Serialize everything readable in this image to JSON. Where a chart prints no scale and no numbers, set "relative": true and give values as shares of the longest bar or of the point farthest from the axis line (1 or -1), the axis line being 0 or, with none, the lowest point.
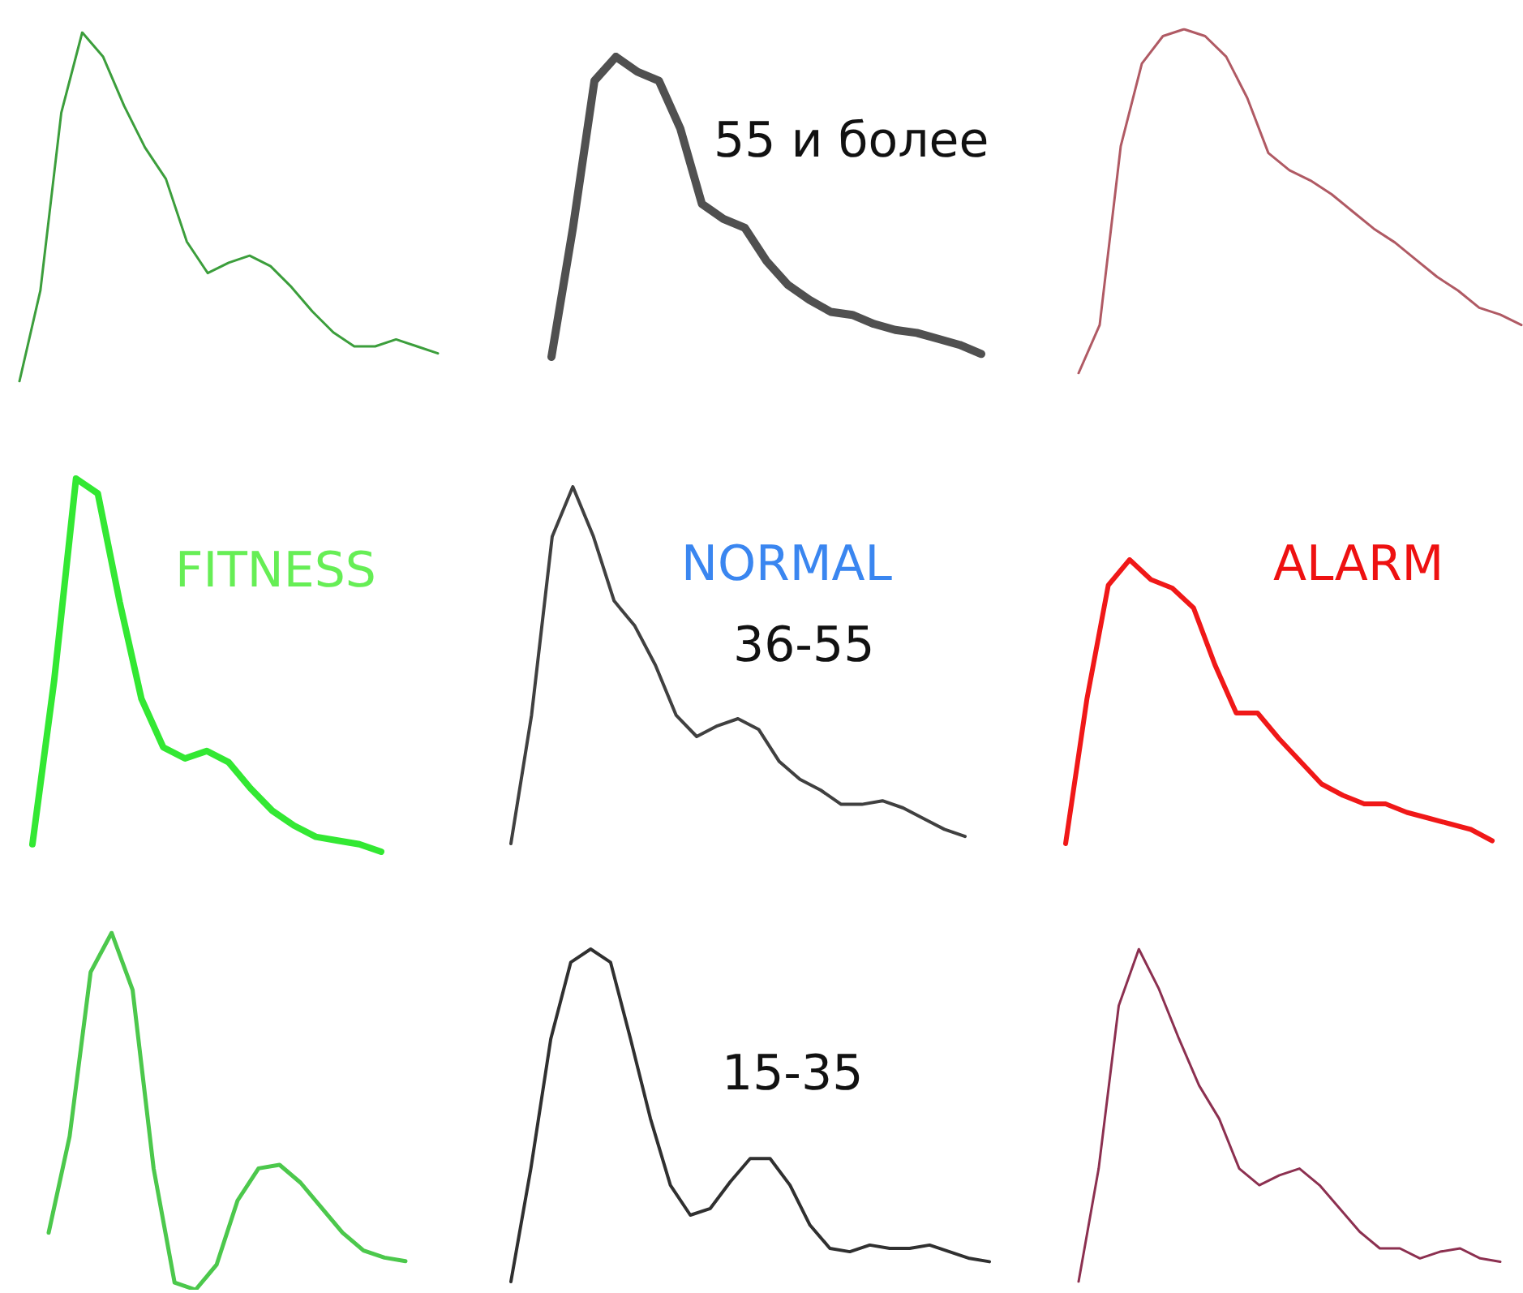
{
  "chart_data": [
    {
      "type": "line",
      "relative": true,
      "categories": [
        null,
        null,
        null,
        null,
        null,
        null,
        null,
        null,
        null,
        null,
        null,
        null,
        null,
        null,
        null,
        null,
        null,
        null,
        null,
        null,
        null
      ],
      "series": [
        {
          "color": "#3c9e3c",
          "values": [
            0,
            0.26,
            0.77,
            1,
            0.93,
            0.79,
            0.67,
            0.58,
            0.4,
            0.31,
            0.34,
            0.36,
            0.33,
            0.27,
            0.2,
            0.14,
            0.1,
            0.1,
            0.12,
            0.1,
            0.08
          ]
        }
      ]
    },
    {
      "type": "line",
      "relative": true,
      "annotations": [
        "55 и более"
      ],
      "categories": [
        null,
        null,
        null,
        null,
        null,
        null,
        null,
        null,
        null,
        null,
        null,
        null,
        null,
        null,
        null,
        null,
        null,
        null,
        null,
        null,
        null
      ],
      "series": [
        {
          "color": "#505050",
          "values": [
            0,
            0.43,
            0.92,
            1,
            0.95,
            0.92,
            0.76,
            0.51,
            0.46,
            0.43,
            0.32,
            0.24,
            0.19,
            0.15,
            0.14,
            0.11,
            0.09,
            0.08,
            0.06,
            0.04,
            0.01
          ]
        }
      ]
    },
    {
      "type": "line",
      "relative": true,
      "categories": [
        null,
        null,
        null,
        null,
        null,
        null,
        null,
        null,
        null,
        null,
        null,
        null,
        null,
        null,
        null,
        null,
        null,
        null,
        null,
        null,
        null,
        null
      ],
      "series": [
        {
          "color": "#b05a64",
          "values": [
            0,
            0.14,
            0.66,
            0.9,
            0.98,
            1,
            0.98,
            0.92,
            0.8,
            0.64,
            0.59,
            0.56,
            0.52,
            0.47,
            0.42,
            0.38,
            0.33,
            0.28,
            0.24,
            0.19,
            0.17,
            0.14
          ]
        }
      ]
    },
    {
      "type": "line",
      "relative": true,
      "annotations": [
        "FITNESS"
      ],
      "categories": [
        null,
        null,
        null,
        null,
        null,
        null,
        null,
        null,
        null,
        null,
        null,
        null,
        null,
        null,
        null,
        null,
        null
      ],
      "series": [
        {
          "color": "#33e833",
          "values": [
            0.02,
            0.46,
            1,
            0.96,
            0.67,
            0.41,
            0.28,
            0.25,
            0.27,
            0.24,
            0.17,
            0.11,
            0.07,
            0.04,
            0.03,
            0.02,
            0
          ]
        }
      ]
    },
    {
      "type": "line",
      "relative": true,
      "annotations": [
        "NORMAL",
        "36-55"
      ],
      "categories": [
        null,
        null,
        null,
        null,
        null,
        null,
        null,
        null,
        null,
        null,
        null,
        null,
        null,
        null,
        null,
        null,
        null,
        null,
        null,
        null,
        null,
        null,
        null
      ],
      "series": [
        {
          "color": "#404040",
          "values": [
            0,
            0.36,
            0.86,
            1,
            0.86,
            0.68,
            0.61,
            0.5,
            0.36,
            0.3,
            0.33,
            0.35,
            0.32,
            0.23,
            0.18,
            0.15,
            0.11,
            0.11,
            0.12,
            0.1,
            0.07,
            0.04,
            0.02
          ]
        }
      ]
    },
    {
      "type": "line",
      "relative": true,
      "annotations": [
        "ALARM"
      ],
      "categories": [
        null,
        null,
        null,
        null,
        null,
        null,
        null,
        null,
        null,
        null,
        null,
        null,
        null,
        null,
        null,
        null,
        null,
        null,
        null,
        null,
        null
      ],
      "series": [
        {
          "color": "#f01818",
          "values": [
            0,
            0.51,
            0.91,
            1,
            0.93,
            0.9,
            0.83,
            0.63,
            0.46,
            0.46,
            0.37,
            0.29,
            0.21,
            0.17,
            0.14,
            0.14,
            0.11,
            0.09,
            0.07,
            0.05,
            0.01
          ]
        }
      ]
    },
    {
      "type": "line",
      "relative": true,
      "categories": [
        null,
        null,
        null,
        null,
        null,
        null,
        null,
        null,
        null,
        null,
        null,
        null,
        null,
        null,
        null,
        null,
        null,
        null
      ],
      "series": [
        {
          "color": "#4cc84c",
          "values": [
            0.16,
            0.43,
            0.89,
            1,
            0.84,
            0.34,
            0.02,
            0,
            0.07,
            0.25,
            0.34,
            0.35,
            0.3,
            0.23,
            0.16,
            0.11,
            0.09,
            0.08
          ]
        }
      ]
    },
    {
      "type": "line",
      "relative": true,
      "annotations": [
        "15-35"
      ],
      "categories": [
        null,
        null,
        null,
        null,
        null,
        null,
        null,
        null,
        null,
        null,
        null,
        null,
        null,
        null,
        null,
        null,
        null,
        null,
        null,
        null,
        null,
        null,
        null,
        null,
        null
      ],
      "series": [
        {
          "color": "#303030",
          "values": [
            0,
            0.34,
            0.73,
            0.96,
            1,
            0.96,
            0.73,
            0.49,
            0.29,
            0.2,
            0.22,
            0.3,
            0.37,
            0.37,
            0.29,
            0.17,
            0.1,
            0.09,
            0.11,
            0.1,
            0.1,
            0.11,
            0.09,
            0.07,
            0.06
          ]
        }
      ]
    },
    {
      "type": "line",
      "relative": true,
      "categories": [
        null,
        null,
        null,
        null,
        null,
        null,
        null,
        null,
        null,
        null,
        null,
        null,
        null,
        null,
        null,
        null,
        null,
        null,
        null,
        null,
        null,
        null
      ],
      "series": [
        {
          "color": "#8c3050",
          "values": [
            0,
            0.34,
            0.83,
            1,
            0.88,
            0.73,
            0.59,
            0.49,
            0.34,
            0.29,
            0.32,
            0.34,
            0.29,
            0.22,
            0.15,
            0.1,
            0.1,
            0.07,
            0.09,
            0.1,
            0.07,
            0.06
          ]
        }
      ]
    }
  ]
}
